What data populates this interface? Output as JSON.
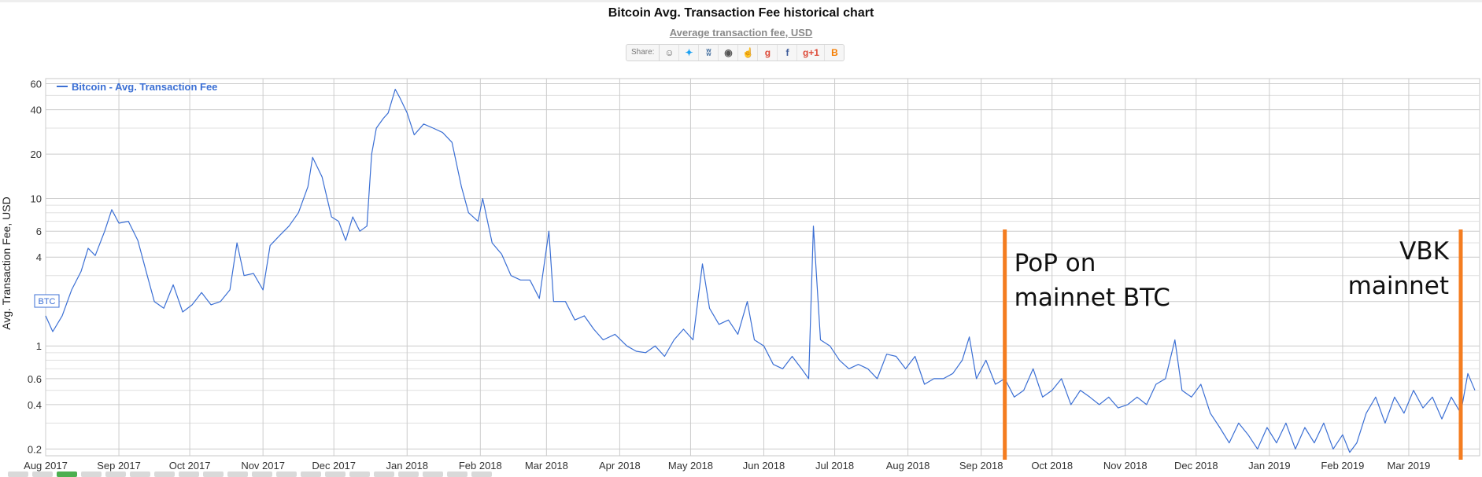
{
  "header": {
    "title": "Bitcoin Avg. Transaction Fee historical chart",
    "subtitle": "Average transaction fee, USD",
    "share_label": "Share:"
  },
  "share_buttons": [
    {
      "icon": "reddit-icon",
      "glyph": "☺",
      "color": "#666666"
    },
    {
      "icon": "twitter-icon",
      "glyph": "✦",
      "color": "#1da1f2"
    },
    {
      "icon": "vk-icon",
      "glyph": "ʬ",
      "color": "#4c75a3"
    },
    {
      "icon": "weibo-icon",
      "glyph": "◉",
      "color": "#555555"
    },
    {
      "icon": "like-icon",
      "glyph": "☝",
      "color": "#4c75a3"
    },
    {
      "icon": "google-plus-icon",
      "glyph": "g",
      "color": "#dd4b39"
    },
    {
      "icon": "facebook-icon",
      "glyph": "f",
      "color": "#3b5998"
    },
    {
      "icon": "google-plus-one-icon",
      "glyph": "g+1",
      "color": "#dd4b39"
    },
    {
      "icon": "blogger-icon",
      "glyph": "B",
      "color": "#f57d00"
    }
  ],
  "chart_data": {
    "type": "line",
    "title": "Bitcoin Avg. Transaction Fee historical chart",
    "subtitle": "Average transaction fee, USD",
    "ylabel": "Avg. Transaction Fee, USD",
    "yscale": "log",
    "ylim": [
      0.18,
      65
    ],
    "y_ticks": [
      0.2,
      0.4,
      0.6,
      1,
      2,
      4,
      6,
      10,
      20,
      40,
      60
    ],
    "y_tick_labels": [
      "0.2",
      "0.4",
      "0.6",
      "1",
      "",
      "4",
      "6",
      "10",
      "20",
      "40",
      "60"
    ],
    "y_minor_gridlines": [
      0.3,
      0.5,
      0.7,
      0.8,
      0.9,
      3,
      5,
      7,
      8,
      9,
      30,
      50
    ],
    "xlim": [
      "2017-08-01",
      "2019-03-31"
    ],
    "x_tick_dates": [
      "2017-08-01",
      "2017-09-01",
      "2017-10-01",
      "2017-11-01",
      "2017-12-01",
      "2018-01-01",
      "2018-02-01",
      "2018-03-01",
      "2018-04-01",
      "2018-05-01",
      "2018-06-01",
      "2018-07-01",
      "2018-08-01",
      "2018-09-01",
      "2018-10-01",
      "2018-11-01",
      "2018-12-01",
      "2019-01-01",
      "2019-02-01",
      "2019-03-01"
    ],
    "x_tick_labels": [
      "Aug 2017",
      "Sep 2017",
      "Oct 2017",
      "Nov 2017",
      "Dec 2017",
      "Jan 2018",
      "Feb 2018",
      "Mar 2018",
      "Apr 2018",
      "May 2018",
      "Jun 2018",
      "Jul 2018",
      "Aug 2018",
      "Sep 2018",
      "Oct 2018",
      "Nov 2018",
      "Dec 2018",
      "Jan 2019",
      "Feb 2019",
      "Mar 2019"
    ],
    "grid": true,
    "legend": {
      "position": "top-left",
      "entries": [
        "Bitcoin - Avg. Transaction Fee"
      ]
    },
    "series": [
      {
        "name": "Bitcoin - Avg. Transaction Fee",
        "color": "#3b6fd4",
        "points": [
          [
            "2017-08-01",
            1.6
          ],
          [
            "2017-08-04",
            1.25
          ],
          [
            "2017-08-08",
            1.6
          ],
          [
            "2017-08-12",
            2.4
          ],
          [
            "2017-08-16",
            3.2
          ],
          [
            "2017-08-19",
            4.6
          ],
          [
            "2017-08-22",
            4.1
          ],
          [
            "2017-08-26",
            6.0
          ],
          [
            "2017-08-29",
            8.4
          ],
          [
            "2017-09-01",
            6.8
          ],
          [
            "2017-09-05",
            7.0
          ],
          [
            "2017-09-09",
            5.2
          ],
          [
            "2017-09-13",
            3.0
          ],
          [
            "2017-09-16",
            2.0
          ],
          [
            "2017-09-20",
            1.8
          ],
          [
            "2017-09-24",
            2.6
          ],
          [
            "2017-09-28",
            1.7
          ],
          [
            "2017-10-02",
            1.9
          ],
          [
            "2017-10-06",
            2.3
          ],
          [
            "2017-10-10",
            1.9
          ],
          [
            "2017-10-14",
            2.0
          ],
          [
            "2017-10-18",
            2.4
          ],
          [
            "2017-10-21",
            5.0
          ],
          [
            "2017-10-24",
            3.0
          ],
          [
            "2017-10-28",
            3.1
          ],
          [
            "2017-11-01",
            2.4
          ],
          [
            "2017-11-04",
            4.8
          ],
          [
            "2017-11-08",
            5.6
          ],
          [
            "2017-11-12",
            6.5
          ],
          [
            "2017-11-16",
            8.0
          ],
          [
            "2017-11-20",
            12.0
          ],
          [
            "2017-11-22",
            19.0
          ],
          [
            "2017-11-26",
            14.0
          ],
          [
            "2017-11-30",
            7.5
          ],
          [
            "2017-12-03",
            7.0
          ],
          [
            "2017-12-06",
            5.2
          ],
          [
            "2017-12-09",
            7.5
          ],
          [
            "2017-12-12",
            6.0
          ],
          [
            "2017-12-15",
            6.5
          ],
          [
            "2017-12-17",
            20.0
          ],
          [
            "2017-12-19",
            30.0
          ],
          [
            "2017-12-22",
            35.0
          ],
          [
            "2017-12-24",
            38.0
          ],
          [
            "2017-12-27",
            55.0
          ],
          [
            "2017-12-29",
            48.0
          ],
          [
            "2018-01-01",
            38.0
          ],
          [
            "2018-01-04",
            27.0
          ],
          [
            "2018-01-08",
            32.0
          ],
          [
            "2018-01-12",
            30.0
          ],
          [
            "2018-01-16",
            28.0
          ],
          [
            "2018-01-20",
            24.0
          ],
          [
            "2018-01-24",
            12.0
          ],
          [
            "2018-01-27",
            8.0
          ],
          [
            "2018-01-31",
            7.0
          ],
          [
            "2018-02-02",
            10.0
          ],
          [
            "2018-02-06",
            5.0
          ],
          [
            "2018-02-10",
            4.2
          ],
          [
            "2018-02-14",
            3.0
          ],
          [
            "2018-02-18",
            2.8
          ],
          [
            "2018-02-22",
            2.8
          ],
          [
            "2018-02-26",
            2.1
          ],
          [
            "2018-03-02",
            6.0
          ],
          [
            "2018-03-04",
            2.0
          ],
          [
            "2018-03-09",
            2.0
          ],
          [
            "2018-03-13",
            1.5
          ],
          [
            "2018-03-17",
            1.6
          ],
          [
            "2018-03-21",
            1.3
          ],
          [
            "2018-03-25",
            1.1
          ],
          [
            "2018-03-30",
            1.2
          ],
          [
            "2018-04-04",
            1.0
          ],
          [
            "2018-04-08",
            0.92
          ],
          [
            "2018-04-12",
            0.9
          ],
          [
            "2018-04-16",
            1.0
          ],
          [
            "2018-04-20",
            0.85
          ],
          [
            "2018-04-24",
            1.1
          ],
          [
            "2018-04-28",
            1.3
          ],
          [
            "2018-05-02",
            1.1
          ],
          [
            "2018-05-06",
            3.6
          ],
          [
            "2018-05-09",
            1.8
          ],
          [
            "2018-05-13",
            1.4
          ],
          [
            "2018-05-17",
            1.5
          ],
          [
            "2018-05-21",
            1.2
          ],
          [
            "2018-05-25",
            2.0
          ],
          [
            "2018-05-28",
            1.1
          ],
          [
            "2018-06-01",
            1.0
          ],
          [
            "2018-06-05",
            0.75
          ],
          [
            "2018-06-09",
            0.7
          ],
          [
            "2018-06-13",
            0.85
          ],
          [
            "2018-06-17",
            0.7
          ],
          [
            "2018-06-20",
            0.6
          ],
          [
            "2018-06-22",
            6.5
          ],
          [
            "2018-06-25",
            1.1
          ],
          [
            "2018-06-29",
            1.0
          ],
          [
            "2018-07-03",
            0.8
          ],
          [
            "2018-07-07",
            0.7
          ],
          [
            "2018-07-11",
            0.75
          ],
          [
            "2018-07-15",
            0.7
          ],
          [
            "2018-07-19",
            0.6
          ],
          [
            "2018-07-23",
            0.88
          ],
          [
            "2018-07-27",
            0.85
          ],
          [
            "2018-07-31",
            0.7
          ],
          [
            "2018-08-04",
            0.85
          ],
          [
            "2018-08-08",
            0.55
          ],
          [
            "2018-08-12",
            0.6
          ],
          [
            "2018-08-16",
            0.6
          ],
          [
            "2018-08-20",
            0.65
          ],
          [
            "2018-08-24",
            0.8
          ],
          [
            "2018-08-27",
            1.15
          ],
          [
            "2018-08-30",
            0.6
          ],
          [
            "2018-09-03",
            0.8
          ],
          [
            "2018-09-07",
            0.55
          ],
          [
            "2018-09-11",
            0.6
          ],
          [
            "2018-09-15",
            0.45
          ],
          [
            "2018-09-19",
            0.5
          ],
          [
            "2018-09-23",
            0.7
          ],
          [
            "2018-09-27",
            0.45
          ],
          [
            "2018-10-01",
            0.5
          ],
          [
            "2018-10-05",
            0.6
          ],
          [
            "2018-10-09",
            0.4
          ],
          [
            "2018-10-13",
            0.5
          ],
          [
            "2018-10-17",
            0.45
          ],
          [
            "2018-10-21",
            0.4
          ],
          [
            "2018-10-25",
            0.45
          ],
          [
            "2018-10-29",
            0.38
          ],
          [
            "2018-11-02",
            0.4
          ],
          [
            "2018-11-06",
            0.45
          ],
          [
            "2018-11-10",
            0.4
          ],
          [
            "2018-11-14",
            0.55
          ],
          [
            "2018-11-18",
            0.6
          ],
          [
            "2018-11-22",
            1.1
          ],
          [
            "2018-11-25",
            0.5
          ],
          [
            "2018-11-29",
            0.45
          ],
          [
            "2018-12-03",
            0.55
          ],
          [
            "2018-12-07",
            0.35
          ],
          [
            "2018-12-11",
            0.28
          ],
          [
            "2018-12-15",
            0.22
          ],
          [
            "2018-12-19",
            0.3
          ],
          [
            "2018-12-23",
            0.25
          ],
          [
            "2018-12-27",
            0.2
          ],
          [
            "2018-12-31",
            0.28
          ],
          [
            "2019-01-04",
            0.22
          ],
          [
            "2019-01-08",
            0.3
          ],
          [
            "2019-01-12",
            0.2
          ],
          [
            "2019-01-16",
            0.28
          ],
          [
            "2019-01-20",
            0.22
          ],
          [
            "2019-01-24",
            0.3
          ],
          [
            "2019-01-28",
            0.2
          ],
          [
            "2019-02-01",
            0.25
          ],
          [
            "2019-02-04",
            0.19
          ],
          [
            "2019-02-07",
            0.22
          ],
          [
            "2019-02-11",
            0.35
          ],
          [
            "2019-02-15",
            0.45
          ],
          [
            "2019-02-19",
            0.3
          ],
          [
            "2019-02-23",
            0.45
          ],
          [
            "2019-02-27",
            0.35
          ],
          [
            "2019-03-03",
            0.5
          ],
          [
            "2019-03-07",
            0.38
          ],
          [
            "2019-03-11",
            0.45
          ],
          [
            "2019-03-15",
            0.32
          ],
          [
            "2019-03-19",
            0.45
          ],
          [
            "2019-03-23",
            0.35
          ],
          [
            "2019-03-26",
            0.65
          ],
          [
            "2019-03-29",
            0.5
          ]
        ]
      }
    ],
    "annotations": [
      {
        "id": "pop",
        "date": "2018-09-11",
        "color": "#f47d20",
        "lines": [
          "PoP on",
          "mainnet BTC"
        ]
      },
      {
        "id": "vbk",
        "date": "2019-03-23",
        "color": "#f47d20",
        "lines": [
          "VBK",
          "mainnet"
        ]
      }
    ],
    "marker_flag": "BTC"
  }
}
